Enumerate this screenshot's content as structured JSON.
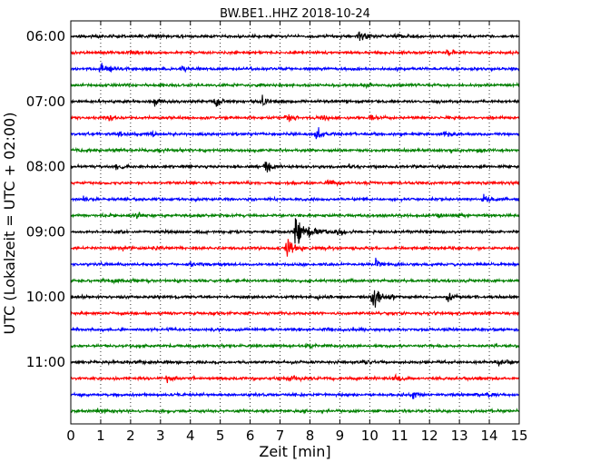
{
  "chart_data": {
    "type": "line",
    "title": "BW.BE1..HHZ 2018-10-24",
    "xlabel": "Zeit  [min]",
    "ylabel": "UTC (Lokalzeit = UTC + 02:00)",
    "xlim": [
      0,
      15
    ],
    "x_ticks": [
      "0",
      "1",
      "2",
      "3",
      "4",
      "5",
      "6",
      "7",
      "8",
      "9",
      "10",
      "11",
      "12",
      "13",
      "14",
      "15"
    ],
    "y_tick_labels": [
      "06:00",
      "07:00",
      "08:00",
      "09:00",
      "10:00",
      "11:00"
    ],
    "grid": "vertical dotted lines at each minute",
    "colors": [
      "#000000",
      "#ff0000",
      "#0000ff",
      "#008000"
    ],
    "traces": [
      {
        "start": "06:00",
        "color": "#000000",
        "events": [
          {
            "t": 9.6,
            "amp": 1.0
          },
          {
            "t": 10.8,
            "amp": 0.3
          },
          {
            "t": 11.3,
            "amp": 0.3
          }
        ]
      },
      {
        "start": "06:15",
        "color": "#ff0000",
        "events": [
          {
            "t": 2.0,
            "amp": 0.3
          },
          {
            "t": 12.6,
            "amp": 0.6
          }
        ]
      },
      {
        "start": "06:30",
        "color": "#0000ff",
        "events": [
          {
            "t": 1.0,
            "amp": 1.1
          },
          {
            "t": 3.7,
            "amp": 0.5
          },
          {
            "t": 10.8,
            "amp": 0.3
          }
        ]
      },
      {
        "start": "06:45",
        "color": "#008000",
        "events": [
          {
            "t": 9.9,
            "amp": 0.3
          }
        ]
      },
      {
        "start": "07:00",
        "color": "#000000",
        "events": [
          {
            "t": 2.8,
            "amp": 0.7
          },
          {
            "t": 4.8,
            "amp": 0.7
          },
          {
            "t": 6.4,
            "amp": 0.9
          }
        ]
      },
      {
        "start": "07:15",
        "color": "#ff0000",
        "events": [
          {
            "t": 1.2,
            "amp": 0.6
          },
          {
            "t": 7.2,
            "amp": 0.8
          },
          {
            "t": 8.4,
            "amp": 0.7
          },
          {
            "t": 10.0,
            "amp": 0.4
          }
        ]
      },
      {
        "start": "07:30",
        "color": "#0000ff",
        "events": [
          {
            "t": 1.6,
            "amp": 0.4
          },
          {
            "t": 2.7,
            "amp": 0.4
          },
          {
            "t": 8.2,
            "amp": 0.9
          },
          {
            "t": 12.5,
            "amp": 0.4
          }
        ]
      },
      {
        "start": "07:45",
        "color": "#008000",
        "events": [
          {
            "t": 12.7,
            "amp": 0.3
          },
          {
            "t": 13.6,
            "amp": 0.4
          }
        ]
      },
      {
        "start": "08:00",
        "color": "#000000",
        "events": [
          {
            "t": 1.5,
            "amp": 0.4
          },
          {
            "t": 6.5,
            "amp": 0.9
          },
          {
            "t": 9.3,
            "amp": 0.3
          },
          {
            "t": 12.3,
            "amp": 0.3
          }
        ]
      },
      {
        "start": "08:15",
        "color": "#ff0000",
        "events": [
          {
            "t": 8.6,
            "amp": 0.7
          }
        ]
      },
      {
        "start": "08:30",
        "color": "#0000ff",
        "events": [
          {
            "t": 0.4,
            "amp": 0.7
          },
          {
            "t": 13.8,
            "amp": 0.8
          }
        ]
      },
      {
        "start": "08:45",
        "color": "#008000",
        "events": [
          {
            "t": 2.2,
            "amp": 0.3
          },
          {
            "t": 12.3,
            "amp": 0.3
          }
        ]
      },
      {
        "start": "09:00",
        "color": "#000000",
        "events": [
          {
            "t": 7.5,
            "amp": 2.6
          },
          {
            "t": 8.9,
            "amp": 0.6
          }
        ]
      },
      {
        "start": "09:15",
        "color": "#ff0000",
        "events": [
          {
            "t": 1.7,
            "amp": 0.3
          },
          {
            "t": 2.8,
            "amp": 0.3
          },
          {
            "t": 7.2,
            "amp": 1.6
          }
        ]
      },
      {
        "start": "09:30",
        "color": "#0000ff",
        "events": [
          {
            "t": 4.0,
            "amp": 0.3
          },
          {
            "t": 10.2,
            "amp": 0.7
          }
        ]
      },
      {
        "start": "09:45",
        "color": "#008000",
        "events": [
          {
            "t": 1.4,
            "amp": 0.4
          }
        ]
      },
      {
        "start": "10:00",
        "color": "#000000",
        "events": [
          {
            "t": 2.8,
            "amp": 0.3
          },
          {
            "t": 8.2,
            "amp": 0.5
          },
          {
            "t": 10.1,
            "amp": 2.0
          },
          {
            "t": 12.6,
            "amp": 0.7
          }
        ]
      },
      {
        "start": "10:15",
        "color": "#ff0000",
        "events": [
          {
            "t": 1.7,
            "amp": 0.3
          },
          {
            "t": 2.5,
            "amp": 0.3
          },
          {
            "t": 3.0,
            "amp": 0.3
          }
        ]
      },
      {
        "start": "10:30",
        "color": "#0000ff",
        "events": [
          {
            "t": 3.3,
            "amp": 0.3
          },
          {
            "t": 8.5,
            "amp": 0.3
          }
        ]
      },
      {
        "start": "10:45",
        "color": "#008000",
        "events": [
          {
            "t": 7.9,
            "amp": 0.4
          }
        ]
      },
      {
        "start": "11:00",
        "color": "#000000",
        "events": [
          {
            "t": 2.2,
            "amp": 0.3
          },
          {
            "t": 9.8,
            "amp": 0.3
          },
          {
            "t": 14.3,
            "amp": 0.7
          }
        ]
      },
      {
        "start": "11:15",
        "color": "#ff0000",
        "events": [
          {
            "t": 3.2,
            "amp": 0.5
          },
          {
            "t": 7.3,
            "amp": 0.6
          },
          {
            "t": 10.8,
            "amp": 0.5
          }
        ]
      },
      {
        "start": "11:30",
        "color": "#0000ff",
        "events": [
          {
            "t": 11.4,
            "amp": 0.6
          },
          {
            "t": 13.9,
            "amp": 0.4
          }
        ]
      },
      {
        "start": "11:45",
        "color": "#008000",
        "events": [
          {
            "t": 0.9,
            "amp": 0.4
          }
        ]
      }
    ]
  }
}
